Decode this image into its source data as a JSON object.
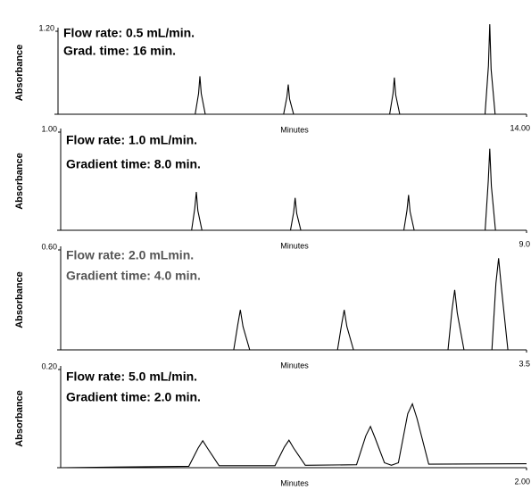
{
  "chart_data": [
    {
      "type": "line",
      "annotations": [
        "Flow rate:  0.5 mL/min.",
        "Grad. time:  16 min."
      ],
      "xlabel": "Minutes",
      "ylabel": "Absorbance",
      "xlim": [
        0,
        14
      ],
      "ylim": [
        0,
        1.2
      ],
      "xticks": [
        {
          "value": 14,
          "label": "14.00"
        }
      ],
      "yticks": [
        {
          "value": 1.2,
          "label": "1.20"
        }
      ],
      "color": "#000000",
      "x": [
        0,
        4.1,
        4.2,
        4.24,
        4.28,
        4.4,
        6.74,
        6.84,
        6.88,
        6.92,
        7.04,
        9.91,
        10.01,
        10.05,
        10.09,
        10.21,
        12.76,
        12.86,
        12.9,
        12.94,
        13.06,
        14
      ],
      "values": [
        0,
        0,
        0.3,
        0.55,
        0.3,
        0,
        0,
        0.25,
        0.43,
        0.22,
        0,
        0,
        0.3,
        0.53,
        0.28,
        0,
        0,
        0.7,
        1.3,
        0.65,
        0,
        0
      ]
    },
    {
      "type": "line",
      "annotations": [
        "Flow rate:  1.0 mL/min.",
        "Gradient time:  8.0 min."
      ],
      "xlabel": "Minutes",
      "ylabel": "Absorbance",
      "xlim": [
        0,
        9
      ],
      "ylim": [
        0,
        1.0
      ],
      "xticks": [
        {
          "value": 9,
          "label": "9.0"
        }
      ],
      "yticks": [
        {
          "value": 1,
          "label": "1.00"
        }
      ],
      "color": "#000000",
      "x": [
        0,
        2.53,
        2.59,
        2.62,
        2.65,
        2.73,
        4.44,
        4.5,
        4.53,
        4.56,
        4.64,
        6.63,
        6.69,
        6.72,
        6.75,
        6.83,
        8.2,
        8.26,
        8.29,
        8.32,
        8.4,
        9
      ],
      "values": [
        0,
        0,
        0.22,
        0.39,
        0.2,
        0,
        0,
        0.18,
        0.33,
        0.17,
        0,
        0,
        0.2,
        0.36,
        0.19,
        0,
        0,
        0.5,
        0.83,
        0.45,
        0,
        0
      ]
    },
    {
      "type": "line",
      "annotations": [
        "Flow rate:  2.0 mLmin.",
        "Gradient time:  4.0 min."
      ],
      "xlabel": "Minutes",
      "ylabel": "Absorbance",
      "xlim": [
        0,
        3.5
      ],
      "ylim": [
        0,
        0.6
      ],
      "xticks": [
        3.5
      ],
      "yticks": [
        {
          "value": 0.6,
          "label": "0.60"
        }
      ],
      "color": "#000000",
      "x": [
        0,
        1.3,
        1.33,
        1.35,
        1.37,
        1.42,
        2.08,
        2.11,
        2.13,
        2.15,
        2.2,
        2.91,
        2.94,
        2.96,
        2.98,
        3.03,
        3.24,
        3.27,
        3.29,
        3.31,
        3.36,
        3.5
      ],
      "values": [
        0,
        0,
        0.15,
        0.24,
        0.14,
        0,
        0,
        0.15,
        0.24,
        0.14,
        0,
        0,
        0.24,
        0.36,
        0.22,
        0,
        0,
        0.4,
        0.55,
        0.38,
        0,
        0
      ]
    },
    {
      "type": "line",
      "annotations": [
        "Flow rate:  5.0 mL/min.",
        "Gradient time:  2.0 min."
      ],
      "xlabel": "Minutes",
      "ylabel": "Absorbance",
      "xlim": [
        0,
        2.0
      ],
      "ylim": [
        0,
        0.2
      ],
      "xticks": [
        {
          "value": 2,
          "label": "2.00"
        }
      ],
      "yticks": [
        {
          "value": 0.2,
          "label": "0.20"
        }
      ],
      "color": "#000000",
      "x": [
        0,
        0.55,
        0.59,
        0.61,
        0.63,
        0.68,
        0.92,
        0.96,
        0.98,
        1.0,
        1.05,
        1.27,
        1.31,
        1.33,
        1.35,
        1.39,
        1.42,
        1.45,
        1.49,
        1.51,
        1.53,
        1.58,
        2.0
      ],
      "values": [
        0,
        0.003,
        0.04,
        0.055,
        0.04,
        0.004,
        0.004,
        0.042,
        0.056,
        0.04,
        0.005,
        0.006,
        0.065,
        0.084,
        0.06,
        0.01,
        0.005,
        0.01,
        0.11,
        0.13,
        0.1,
        0.007,
        0.008
      ]
    }
  ]
}
